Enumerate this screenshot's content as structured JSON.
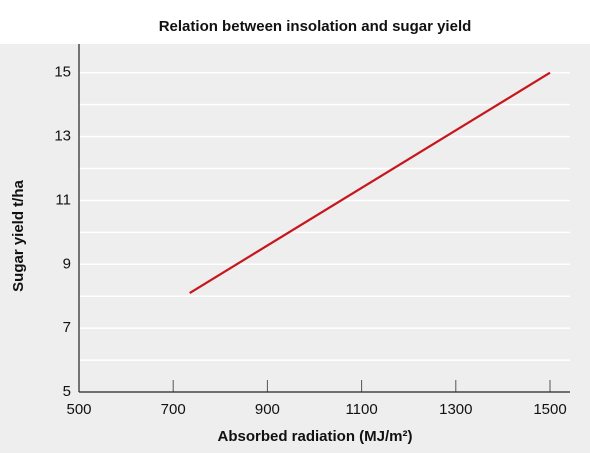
{
  "chart_data": {
    "type": "line",
    "title": "Relation between insolation and sugar yield",
    "x_label": "Absorbed radiation (MJ/m²)",
    "y_label": "Sugar yield  t/ha",
    "x": [
      735,
      1500
    ],
    "series": [
      {
        "name": "Sugar yield",
        "color": "#c8161d",
        "values": [
          8.1,
          15
        ]
      }
    ],
    "xlim": [
      500,
      1500
    ],
    "xticks": [
      500,
      700,
      900,
      1100,
      1300,
      1500
    ],
    "ylim": [
      5,
      15.9
    ],
    "yticks": [
      5,
      7,
      9,
      11,
      13,
      15
    ],
    "minor_yticks": [
      6,
      8,
      10,
      12,
      14
    ],
    "grid": true,
    "background": "#eeeeee"
  }
}
